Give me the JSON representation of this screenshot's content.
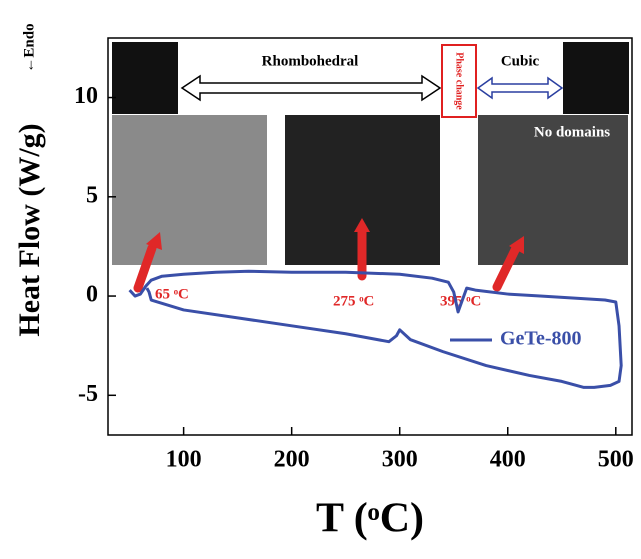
{
  "chart_data": {
    "type": "line",
    "y_label": "Heat Flow (W/g)",
    "x_label": "T (ᵒC)",
    "endo_label": "←Endo",
    "annotations": [
      "Rhombohedral",
      "Phase change",
      "Cubic",
      "No domains",
      "65 ᵒC",
      "275 ᵒC",
      "395 ᵒC"
    ],
    "x": [
      50,
      55,
      60,
      65,
      70,
      80,
      100,
      130,
      160,
      200,
      250,
      300,
      330,
      345,
      350,
      354,
      358,
      362,
      370,
      400,
      430,
      460,
      490,
      500,
      503,
      505,
      503,
      495,
      480,
      470,
      450,
      420,
      380,
      340,
      310,
      300,
      297,
      290,
      250,
      200,
      150,
      100,
      70,
      68,
      66
    ],
    "series": [
      {
        "name": "GeTe-800",
        "color": "#3a4fa8",
        "values": [
          0.3,
          0,
          0.1,
          0.5,
          0.8,
          1.0,
          1.1,
          1.2,
          1.25,
          1.2,
          1.2,
          1.1,
          0.9,
          0.7,
          0.2,
          -0.8,
          -0.2,
          0.4,
          0.3,
          0.1,
          0,
          -0.1,
          -0.2,
          -0.3,
          -1.5,
          -3.5,
          -4.3,
          -4.5,
          -4.6,
          -4.6,
          -4.3,
          -4.0,
          -3.5,
          -2.8,
          -2.2,
          -1.7,
          -2.0,
          -2.3,
          -1.9,
          -1.5,
          -1.1,
          -0.7,
          -0.2,
          0.2,
          0.4
        ]
      }
    ],
    "xlim": [
      30,
      515
    ],
    "ylim": [
      -7,
      13
    ],
    "xticks": [
      100,
      200,
      300,
      400,
      500
    ],
    "yticks": [
      -5,
      0,
      5,
      10
    ]
  }
}
